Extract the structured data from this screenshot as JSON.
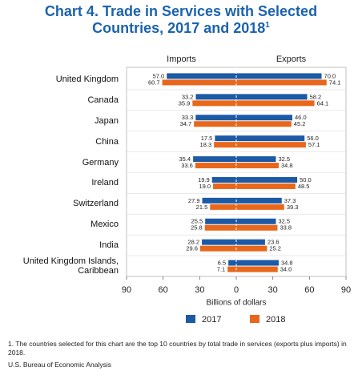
{
  "title": [
    "Chart 4. Trade in Services with Selected",
    "Countries, 2017 and 2018"
  ],
  "title_footnote_mark": "1",
  "chart_data": {
    "type": "butterfly-bar",
    "panel_labels": [
      "Imports",
      "Exports"
    ],
    "x_label": "Billions of dollars",
    "categories": [
      "United Kingdom",
      "Canada",
      "Japan",
      "China",
      "Germany",
      "Ireland",
      "Switzerland",
      "Mexico",
      "India",
      "United Kingdom Islands, Caribbean"
    ],
    "series": [
      {
        "name": "2017",
        "color": "#1c5aa6",
        "imports": {
          "values": [
            57.0,
            33.2,
            33.3,
            17.5,
            35.4,
            19.9,
            27.9,
            25.5,
            28.2,
            6.5
          ],
          "value_labels": [
            "57.0",
            "33.2",
            "33.3",
            "17.5",
            "35.4",
            "19.9",
            "27.9",
            "25.5",
            "28.2",
            "6.5"
          ]
        },
        "exports": {
          "values": [
            70.0,
            58.2,
            46.0,
            56.0,
            32.5,
            50.0,
            37.3,
            32.5,
            23.6,
            34.8
          ],
          "value_labels": [
            "70.0",
            "58.2",
            "46.0",
            "56.0",
            "32.5",
            "50.0",
            "37.3",
            "32.5",
            "23.6",
            "34.8"
          ]
        }
      },
      {
        "name": "2018",
        "color": "#e8671b",
        "imports": {
          "values": [
            60.7,
            35.9,
            34.7,
            18.3,
            33.6,
            19.0,
            21.5,
            25.8,
            29.6,
            7.1
          ],
          "value_labels": [
            "60.7",
            "35.9",
            "34.7",
            "18.3",
            "33.6",
            "19.0",
            "21.5",
            "25.8",
            "29.6",
            "7.1"
          ]
        },
        "exports": {
          "values": [
            74.1,
            64.1,
            45.2,
            57.1,
            34.8,
            48.5,
            39.3,
            33.8,
            25.2,
            34.0
          ],
          "value_labels": [
            "74.1",
            "64.1",
            "45.2",
            "57.1",
            "34.8",
            "48.5",
            "39.3",
            "33.8",
            "25.2",
            "34.0"
          ]
        }
      }
    ],
    "xlim": [
      -90,
      90
    ],
    "xticks": [
      {
        "value": -90,
        "label": "90"
      },
      {
        "value": -60,
        "label": "60"
      },
      {
        "value": -30,
        "label": "30"
      },
      0,
      30,
      60,
      90
    ]
  },
  "footnote": "1.  The countries selected for this chart are the top 10 countries by total trade in services (exports plus imports) in 2018.",
  "source": "U.S. Bureau of Economic Analysis"
}
